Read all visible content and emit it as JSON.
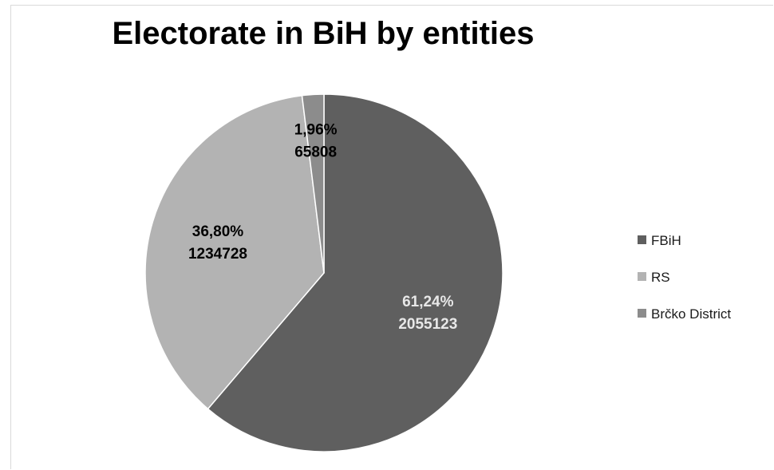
{
  "chart_data": {
    "type": "pie",
    "title": "Electorate in BiH by entities",
    "slices": [
      {
        "name": "FBiH",
        "value": 2055123,
        "percent_label": "61,24%",
        "value_label": "2055123",
        "color": "#5f5f5f",
        "label_color": "#e8e8e8"
      },
      {
        "name": "RS",
        "value": 1234728,
        "percent_label": "36,80%",
        "value_label": "1234728",
        "color": "#b3b3b3",
        "label_color": "#000000"
      },
      {
        "name": "Brčko District",
        "value": 65808,
        "percent_label": "1,96%",
        "value_label": "65808",
        "color": "#8c8c8c",
        "label_color": "#000000"
      }
    ],
    "legend_position": "right"
  }
}
